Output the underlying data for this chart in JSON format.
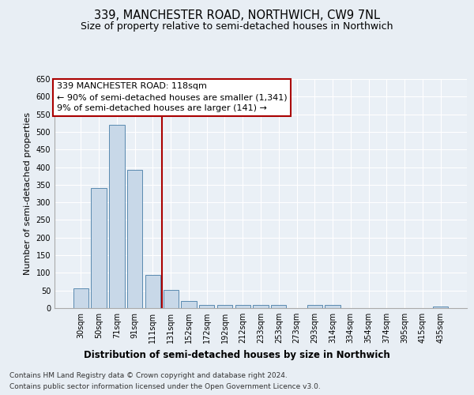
{
  "title": "339, MANCHESTER ROAD, NORTHWICH, CW9 7NL",
  "subtitle": "Size of property relative to semi-detached houses in Northwich",
  "xlabel": "Distribution of semi-detached houses by size in Northwich",
  "ylabel": "Number of semi-detached properties",
  "categories": [
    "30sqm",
    "50sqm",
    "71sqm",
    "91sqm",
    "111sqm",
    "131sqm",
    "152sqm",
    "172sqm",
    "192sqm",
    "212sqm",
    "233sqm",
    "253sqm",
    "273sqm",
    "293sqm",
    "314sqm",
    "334sqm",
    "354sqm",
    "374sqm",
    "395sqm",
    "415sqm",
    "435sqm"
  ],
  "values": [
    57,
    340,
    520,
    393,
    95,
    51,
    20,
    9,
    8,
    8,
    9,
    8,
    0,
    9,
    9,
    0,
    0,
    0,
    0,
    0,
    5
  ],
  "bar_color": "#c8d8e8",
  "bar_edge_color": "#5a8ab0",
  "bar_linewidth": 0.7,
  "vline_x_index": 4.5,
  "vline_color": "#aa0000",
  "annotation_text_line1": "339 MANCHESTER ROAD: 118sqm",
  "annotation_text_line2": "← 90% of semi-detached houses are smaller (1,341)",
  "annotation_text_line3": "9% of semi-detached houses are larger (141) →",
  "annotation_box_color": "#ffffff",
  "annotation_box_edgecolor": "#aa0000",
  "ylim": [
    0,
    650
  ],
  "yticks": [
    0,
    50,
    100,
    150,
    200,
    250,
    300,
    350,
    400,
    450,
    500,
    550,
    600,
    650
  ],
  "background_color": "#e8eef4",
  "plot_background_color": "#eaf0f6",
  "grid_color": "#ffffff",
  "footer_line1": "Contains HM Land Registry data © Crown copyright and database right 2024.",
  "footer_line2": "Contains public sector information licensed under the Open Government Licence v3.0.",
  "title_fontsize": 10.5,
  "subtitle_fontsize": 9,
  "xlabel_fontsize": 8.5,
  "ylabel_fontsize": 8,
  "tick_fontsize": 7,
  "annotation_fontsize": 8,
  "footer_fontsize": 6.5
}
